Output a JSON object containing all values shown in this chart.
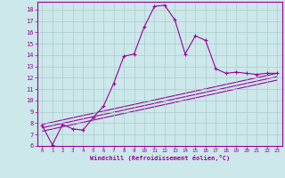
{
  "xlabel": "Windchill (Refroidissement éolien,°C)",
  "bg_color": "#cce8ea",
  "line_color": "#990099",
  "grid_color": "#aacccc",
  "xlim": [
    -0.5,
    23.5
  ],
  "ylim": [
    6,
    18.7
  ],
  "xticks": [
    0,
    1,
    2,
    3,
    4,
    5,
    6,
    7,
    8,
    9,
    10,
    11,
    12,
    13,
    14,
    15,
    16,
    17,
    18,
    19,
    20,
    21,
    22,
    23
  ],
  "yticks": [
    6,
    7,
    8,
    9,
    10,
    11,
    12,
    13,
    14,
    15,
    16,
    17,
    18
  ],
  "curve1_x": [
    0,
    1,
    2,
    3,
    4,
    5,
    6,
    7,
    8,
    9,
    10,
    11,
    12,
    13,
    14,
    15,
    16,
    17,
    18,
    19,
    20,
    21,
    22,
    23
  ],
  "curve1_y": [
    7.8,
    6.1,
    7.9,
    7.5,
    7.4,
    8.5,
    9.5,
    11.5,
    13.9,
    14.1,
    16.5,
    18.3,
    18.4,
    17.1,
    14.1,
    15.7,
    15.3,
    12.8,
    12.4,
    12.5,
    12.4,
    12.3,
    12.4,
    12.4
  ],
  "line1_x": [
    0,
    23
  ],
  "line1_y": [
    7.9,
    12.4
  ],
  "line2_x": [
    0,
    23
  ],
  "line2_y": [
    7.6,
    12.1
  ],
  "line3_x": [
    0,
    23
  ],
  "line3_y": [
    7.3,
    11.8
  ]
}
